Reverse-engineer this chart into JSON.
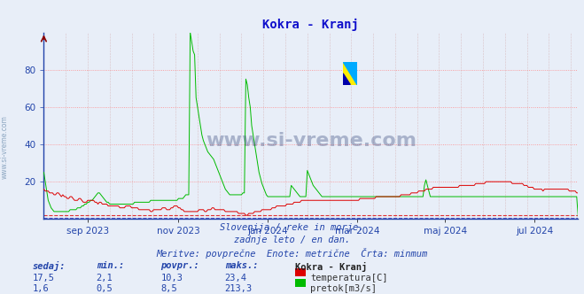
{
  "title": "Kokra - Kranj",
  "title_color": "#1010cc",
  "bg_color": "#e8eef8",
  "plot_bg_color": "#e8eef8",
  "grid_color_h": "#ff8888",
  "grid_color_v": "#cc9999",
  "ylim": [
    0,
    100
  ],
  "yticks": [
    20,
    40,
    60,
    80
  ],
  "watermark_text": "www.si-vreme.com",
  "subtitle_lines": [
    "Slovenija / reke in morje.",
    "zadnje leto / en dan.",
    "Meritve: povprečne  Enote: metrične  Črta: minmum"
  ],
  "legend_title": "Kokra - Kranj",
  "legend_entries": [
    {
      "label": "temperatura[C]",
      "color": "#dd0000"
    },
    {
      "label": "pretok[m3/s]",
      "color": "#00bb00"
    }
  ],
  "table_headers": [
    "sedaj:",
    "min.:",
    "povpr.:",
    "maks.:"
  ],
  "table_rows": [
    [
      "17,5",
      "2,1",
      "10,3",
      "23,4"
    ],
    [
      "1,6",
      "0,5",
      "8,5",
      "213,3"
    ]
  ],
  "temp_color": "#dd0000",
  "flow_color": "#00bb00",
  "min_line_temp_color": "#dd0000",
  "min_line_flow_color": "#3333bb",
  "temp_min": 2.1,
  "flow_min": 0.5,
  "x_tick_labels": [
    "sep 2023",
    "nov 2023",
    "jan 2024",
    "mar 2024",
    "maj 2024",
    "jul 2024"
  ],
  "x_tick_positions": [
    30,
    92,
    153,
    214,
    274,
    335
  ],
  "n_points": 366,
  "temp_data": [
    16,
    15,
    15,
    15,
    14,
    14,
    14,
    13,
    13,
    14,
    14,
    13,
    12,
    13,
    12,
    12,
    11,
    11,
    12,
    12,
    11,
    10,
    10,
    10,
    11,
    11,
    10,
    9,
    9,
    9,
    10,
    10,
    10,
    10,
    10,
    9,
    9,
    8,
    9,
    9,
    8,
    8,
    8,
    8,
    7,
    7,
    7,
    7,
    7,
    7,
    7,
    7,
    6,
    6,
    6,
    6,
    7,
    7,
    7,
    7,
    6,
    6,
    6,
    6,
    6,
    5,
    5,
    5,
    5,
    5,
    5,
    5,
    5,
    4,
    4,
    5,
    5,
    5,
    5,
    5,
    5,
    6,
    6,
    6,
    5,
    5,
    5,
    6,
    6,
    7,
    7,
    7,
    6,
    6,
    5,
    5,
    4,
    4,
    4,
    4,
    4,
    4,
    4,
    4,
    4,
    4,
    5,
    5,
    5,
    5,
    4,
    4,
    5,
    5,
    5,
    6,
    6,
    5,
    5,
    5,
    5,
    5,
    5,
    5,
    4,
    4,
    4,
    4,
    4,
    4,
    4,
    4,
    4,
    3,
    3,
    3,
    3,
    3,
    2,
    2,
    3,
    3,
    3,
    3,
    4,
    4,
    4,
    4,
    4,
    5,
    5,
    5,
    5,
    5,
    5,
    5,
    6,
    6,
    6,
    7,
    7,
    7,
    7,
    7,
    7,
    7,
    8,
    8,
    8,
    8,
    8,
    9,
    9,
    9,
    9,
    9,
    10,
    10,
    10,
    10,
    10,
    10,
    10,
    10,
    10,
    10,
    10,
    10,
    10,
    10,
    10,
    10,
    10,
    10,
    10,
    10,
    10,
    10,
    10,
    10,
    10,
    10,
    10,
    10,
    10,
    10,
    10,
    10,
    10,
    10,
    10,
    10,
    10,
    10,
    10,
    10,
    11,
    11,
    11,
    11,
    11,
    11,
    11,
    11,
    11,
    11,
    11,
    12,
    12,
    12,
    12,
    12,
    12,
    12,
    12,
    12,
    12,
    12,
    12,
    12,
    12,
    12,
    12,
    12,
    13,
    13,
    13,
    13,
    13,
    13,
    13,
    14,
    14,
    14,
    14,
    14,
    15,
    15,
    15,
    15,
    15,
    16,
    16,
    16,
    16,
    16,
    17,
    17,
    17,
    17,
    17,
    17,
    17,
    17,
    17,
    17,
    17,
    17,
    17,
    17,
    17,
    17,
    17,
    17,
    18,
    18,
    18,
    18,
    18,
    18,
    18,
    18,
    18,
    18,
    18,
    19,
    19,
    19,
    19,
    19,
    19,
    19,
    20,
    20,
    20,
    20,
    20,
    20,
    20,
    20,
    20,
    20,
    20,
    20,
    20,
    20,
    20,
    20,
    20,
    20,
    19,
    19,
    19,
    19,
    19,
    19,
    19,
    19,
    18,
    18,
    18,
    17,
    17,
    17,
    17,
    16,
    16,
    16,
    16,
    16,
    16,
    15,
    16,
    16,
    16,
    16,
    16,
    16,
    16,
    16,
    16,
    16,
    16,
    16,
    16,
    16,
    16,
    16,
    16,
    15,
    15,
    15,
    15,
    15,
    14,
    14,
    14
  ],
  "flow_data": [
    25,
    20,
    15,
    10,
    8,
    6,
    5,
    4,
    4,
    4,
    4,
    4,
    4,
    4,
    4,
    4,
    4,
    4,
    5,
    5,
    5,
    5,
    5,
    6,
    6,
    6,
    7,
    7,
    8,
    8,
    9,
    9,
    10,
    10,
    11,
    12,
    13,
    14,
    14,
    13,
    12,
    11,
    10,
    9,
    9,
    8,
    8,
    8,
    8,
    8,
    8,
    8,
    8,
    8,
    8,
    8,
    8,
    8,
    8,
    8,
    8,
    8,
    9,
    9,
    9,
    9,
    9,
    9,
    9,
    9,
    9,
    9,
    9,
    10,
    10,
    10,
    10,
    10,
    10,
    10,
    10,
    10,
    10,
    10,
    10,
    10,
    10,
    10,
    10,
    10,
    10,
    10,
    11,
    11,
    11,
    11,
    12,
    13,
    13,
    13,
    100,
    95,
    90,
    88,
    65,
    60,
    55,
    50,
    45,
    42,
    40,
    38,
    36,
    35,
    34,
    33,
    32,
    30,
    28,
    26,
    24,
    22,
    20,
    18,
    16,
    15,
    14,
    13,
    13,
    13,
    13,
    13,
    13,
    13,
    13,
    13,
    14,
    14,
    75,
    72,
    65,
    60,
    50,
    45,
    40,
    35,
    30,
    25,
    22,
    19,
    17,
    15,
    13,
    12,
    12,
    12,
    12,
    12,
    12,
    12,
    12,
    12,
    12,
    12,
    12,
    12,
    12,
    12,
    12,
    18,
    17,
    16,
    15,
    14,
    13,
    12,
    12,
    12,
    12,
    12,
    26,
    24,
    22,
    20,
    18,
    17,
    16,
    15,
    14,
    13,
    12,
    12,
    12,
    12,
    12,
    12,
    12,
    12,
    12,
    12,
    12,
    12,
    12,
    12,
    12,
    12,
    12,
    12,
    12,
    12,
    12,
    12,
    12,
    12,
    12,
    12,
    12,
    12,
    12,
    12,
    12,
    12,
    12,
    12,
    12,
    12,
    12,
    12,
    12,
    12,
    12,
    12,
    12,
    12,
    12,
    12,
    12,
    12,
    12,
    12,
    12,
    12,
    12,
    12,
    12,
    12,
    12,
    12,
    12,
    12,
    12,
    12,
    12,
    12,
    12,
    12,
    12,
    12,
    12,
    12,
    18,
    21,
    18,
    15,
    12,
    12,
    12,
    12,
    12,
    12,
    12,
    12,
    12,
    12,
    12,
    12,
    12,
    12,
    12,
    12,
    12,
    12,
    12,
    12,
    12,
    12,
    12,
    12,
    12,
    12,
    12,
    12,
    12,
    12,
    12,
    12,
    12,
    12,
    12,
    12,
    12,
    12,
    12,
    12,
    12,
    12,
    12,
    12,
    12,
    12,
    12,
    12,
    12,
    12,
    12,
    12,
    12,
    12,
    12,
    12,
    12,
    12,
    12,
    12,
    12,
    12,
    12,
    12,
    12,
    12,
    12,
    12,
    12,
    12,
    12,
    12,
    12,
    12,
    12,
    12,
    12,
    12,
    12,
    12,
    12,
    12,
    12,
    12,
    12,
    12,
    12,
    12,
    12,
    12,
    12,
    12,
    12,
    12,
    12,
    12,
    12,
    12,
    12,
    12,
    12,
    1,
    1
  ]
}
